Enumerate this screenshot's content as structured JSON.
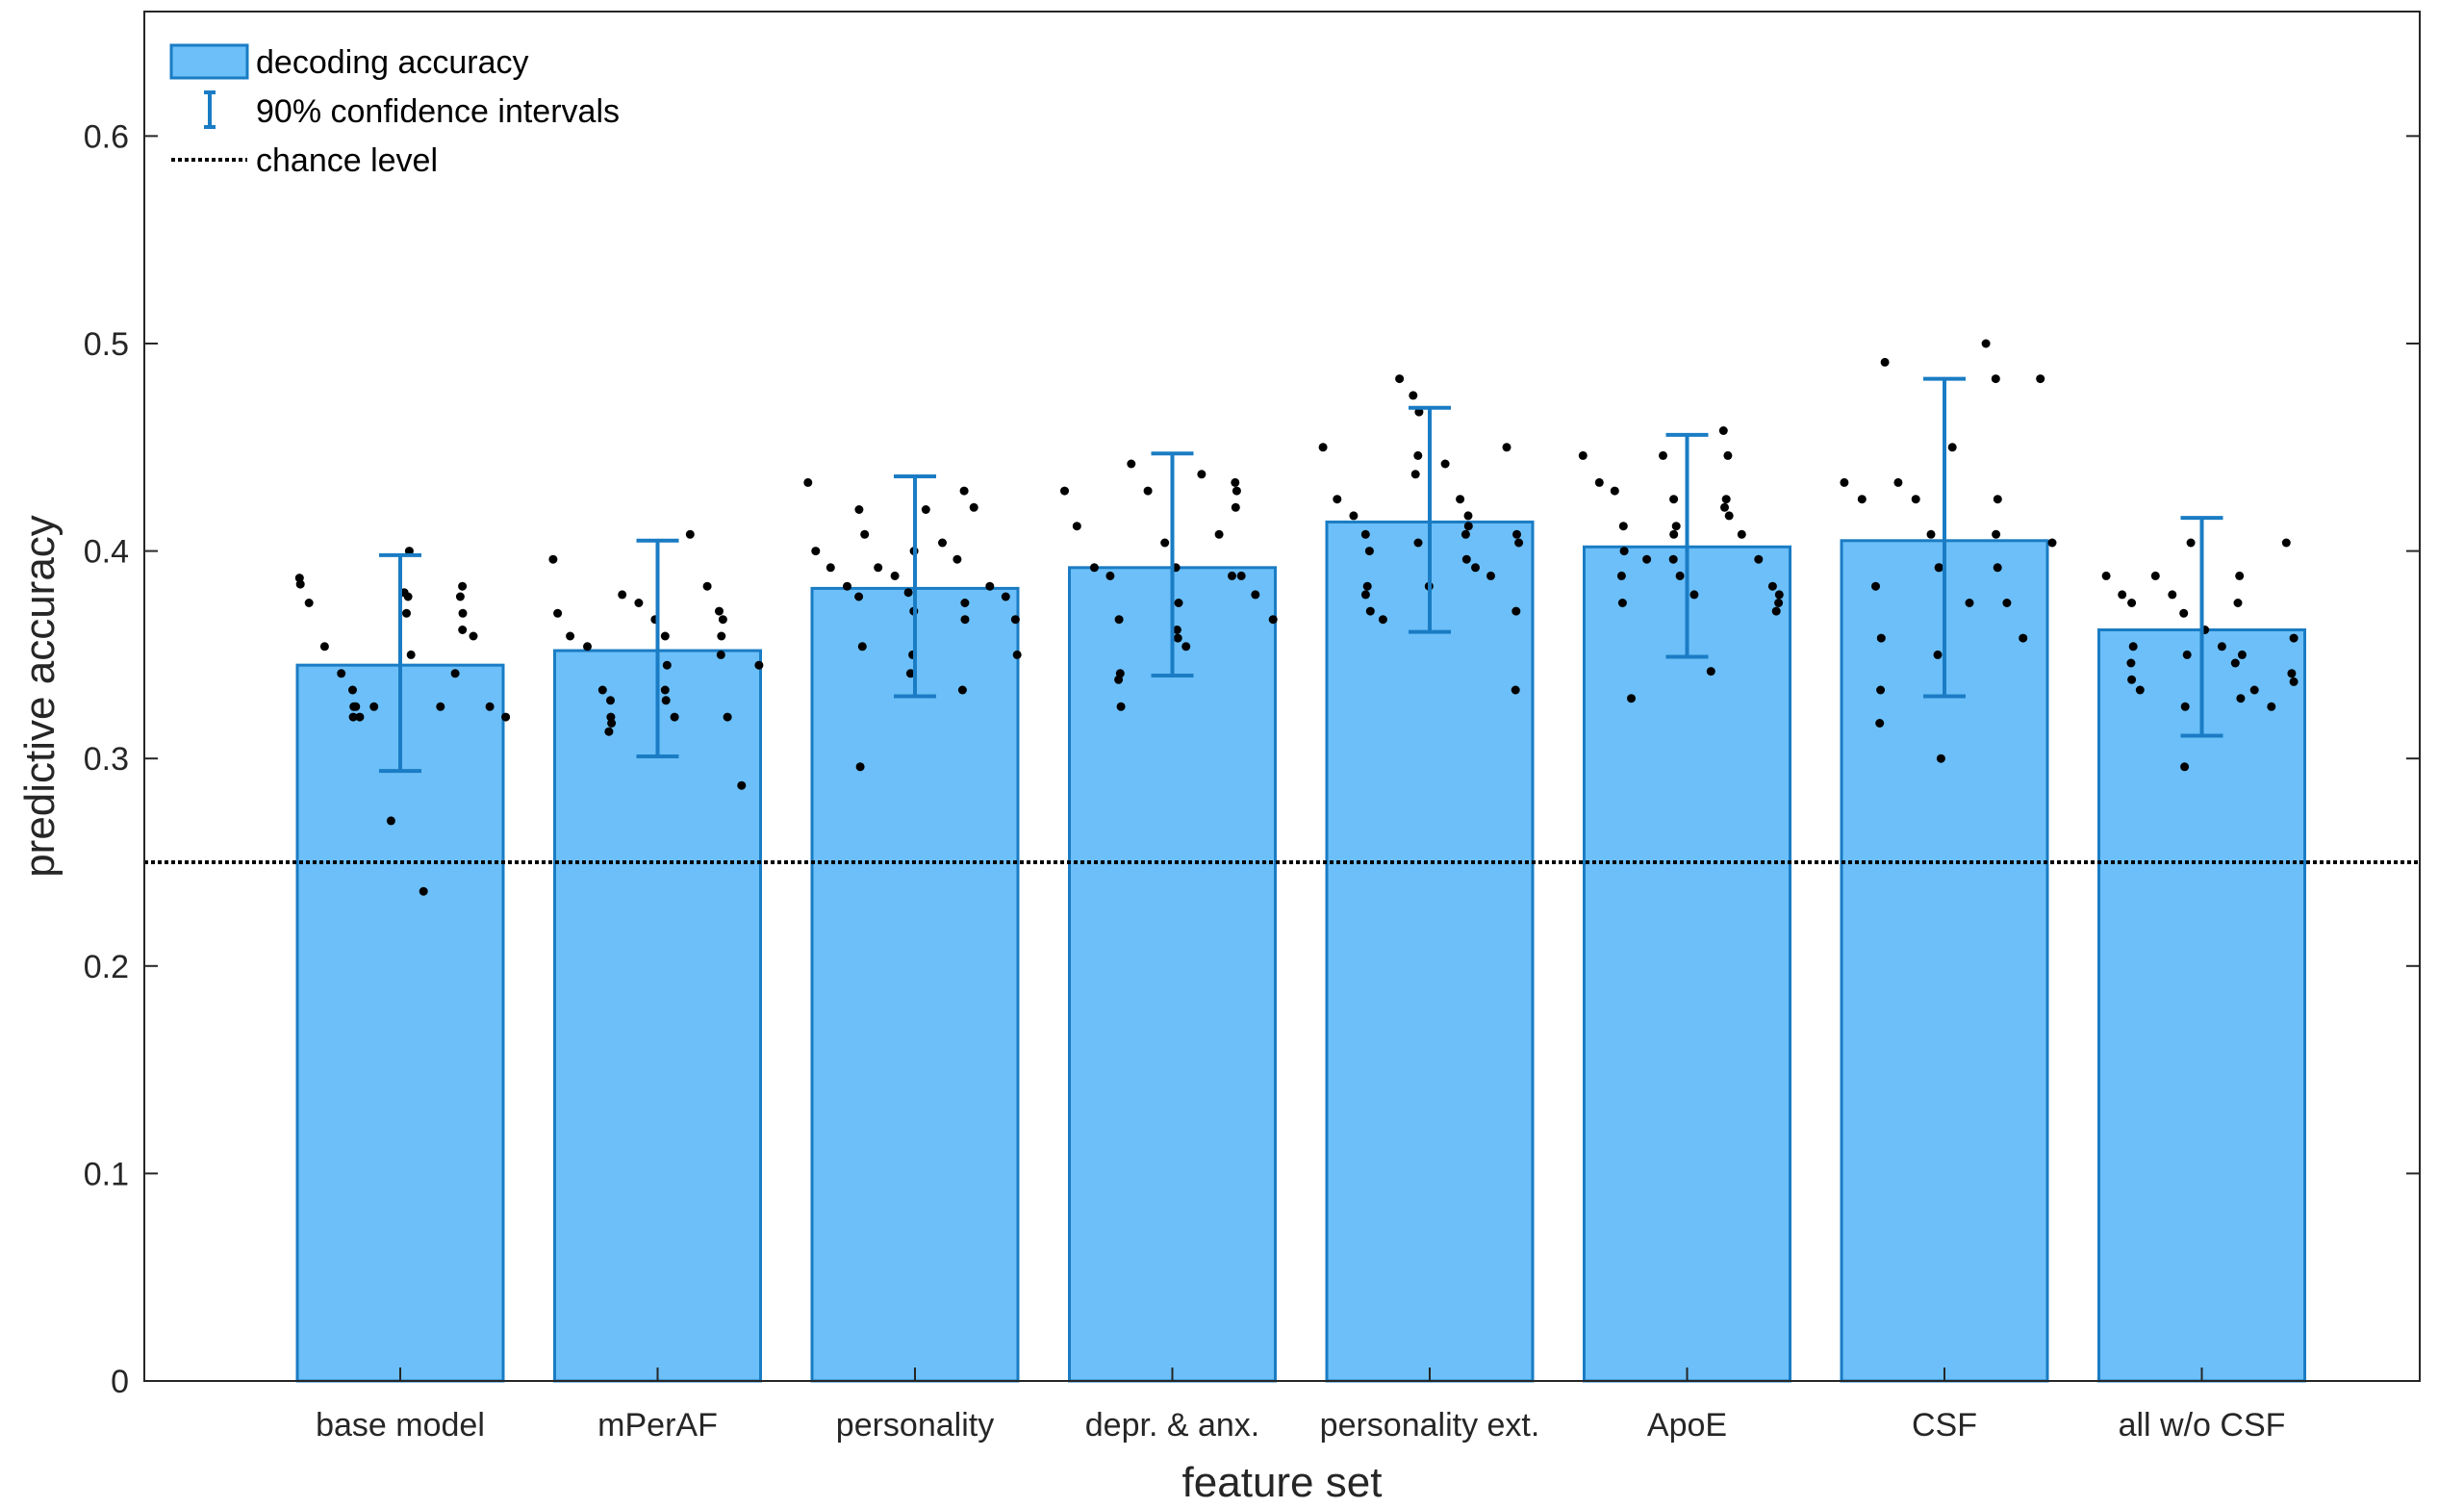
{
  "chart_data": {
    "type": "bar",
    "title": "",
    "xlabel": "feature set",
    "ylabel": "predictive accuracy",
    "ylim": [
      0,
      0.66
    ],
    "yticks": [
      0,
      0.1,
      0.2,
      0.3,
      0.4,
      0.5,
      0.6
    ],
    "ytick_labels": [
      "0",
      "0.1",
      "0.2",
      "0.3",
      "0.4",
      "0.5",
      "0.6"
    ],
    "categories": [
      "base model",
      "mPerAF",
      "personality",
      "depr. & anx.",
      "personality ext.",
      "ApoE",
      "CSF",
      "all w/o CSF"
    ],
    "series": [
      {
        "name": "decoding accuracy",
        "values": [
          0.345,
          0.352,
          0.382,
          0.392,
          0.414,
          0.402,
          0.405,
          0.362
        ]
      }
    ],
    "ci_low": [
      0.294,
      0.301,
      0.33,
      0.34,
      0.361,
      0.349,
      0.33,
      0.311
    ],
    "ci_high": [
      0.398,
      0.405,
      0.436,
      0.447,
      0.469,
      0.456,
      0.483,
      0.416
    ],
    "chance_level": 0.25,
    "points": [
      [
        0.387,
        0.384,
        0.375,
        0.354,
        0.341,
        0.333,
        0.325,
        0.325,
        0.32,
        0.32,
        0.325,
        0.27,
        0.38,
        0.4,
        0.378,
        0.37,
        0.35,
        0.236,
        0.325,
        0.341,
        0.362,
        0.383,
        0.378,
        0.37,
        0.359,
        0.325,
        0.32
      ],
      [
        0.396,
        0.37,
        0.359,
        0.354,
        0.333,
        0.328,
        0.32,
        0.313,
        0.317,
        0.379,
        0.375,
        0.367,
        0.359,
        0.345,
        0.333,
        0.328,
        0.32,
        0.408,
        0.383,
        0.371,
        0.367,
        0.359,
        0.35,
        0.32,
        0.287,
        0.345
      ],
      [
        0.433,
        0.4,
        0.392,
        0.383,
        0.378,
        0.354,
        0.296,
        0.42,
        0.408,
        0.392,
        0.388,
        0.38,
        0.371,
        0.35,
        0.341,
        0.4,
        0.42,
        0.404,
        0.396,
        0.375,
        0.367,
        0.333,
        0.429,
        0.421,
        0.383,
        0.378,
        0.367,
        0.35
      ],
      [
        0.429,
        0.412,
        0.392,
        0.388,
        0.367,
        0.341,
        0.338,
        0.325,
        0.442,
        0.429,
        0.404,
        0.392,
        0.375,
        0.362,
        0.358,
        0.354,
        0.437,
        0.408,
        0.388,
        0.429,
        0.421,
        0.433,
        0.388,
        0.379,
        0.367
      ],
      [
        0.45,
        0.425,
        0.417,
        0.408,
        0.4,
        0.383,
        0.379,
        0.371,
        0.367,
        0.483,
        0.475,
        0.467,
        0.446,
        0.437,
        0.404,
        0.383,
        0.442,
        0.425,
        0.417,
        0.412,
        0.408,
        0.396,
        0.392,
        0.388,
        0.45,
        0.408,
        0.404,
        0.371,
        0.333
      ],
      [
        0.446,
        0.433,
        0.429,
        0.412,
        0.4,
        0.388,
        0.375,
        0.329,
        0.396,
        0.446,
        0.425,
        0.412,
        0.408,
        0.396,
        0.388,
        0.379,
        0.342,
        0.458,
        0.446,
        0.425,
        0.421,
        0.417,
        0.408,
        0.396,
        0.383,
        0.379,
        0.375,
        0.371
      ],
      [
        0.433,
        0.425,
        0.383,
        0.358,
        0.333,
        0.317,
        0.491,
        0.433,
        0.425,
        0.408,
        0.392,
        0.392,
        0.35,
        0.3,
        0.45,
        0.375,
        0.5,
        0.483,
        0.425,
        0.408,
        0.392,
        0.375,
        0.358,
        0.483,
        0.404
      ],
      [
        0.388,
        0.379,
        0.375,
        0.354,
        0.346,
        0.338,
        0.333,
        0.388,
        0.379,
        0.37,
        0.35,
        0.325,
        0.296,
        0.404,
        0.362,
        0.354,
        0.346,
        0.329,
        0.388,
        0.375,
        0.35,
        0.333,
        0.325,
        0.404,
        0.337,
        0.358,
        0.341
      ]
    ],
    "legend": {
      "position": "top-left",
      "entries": [
        "decoding accuracy",
        "90% confidence intervals",
        "chance level"
      ]
    },
    "grid": false,
    "colors": {
      "bar_fill": "#6cbff8",
      "bar_edge": "#1a7cc4",
      "error_bar": "#1a7cc4",
      "points": "#000000",
      "chance_line": "#000000",
      "axis": "#262626"
    }
  }
}
